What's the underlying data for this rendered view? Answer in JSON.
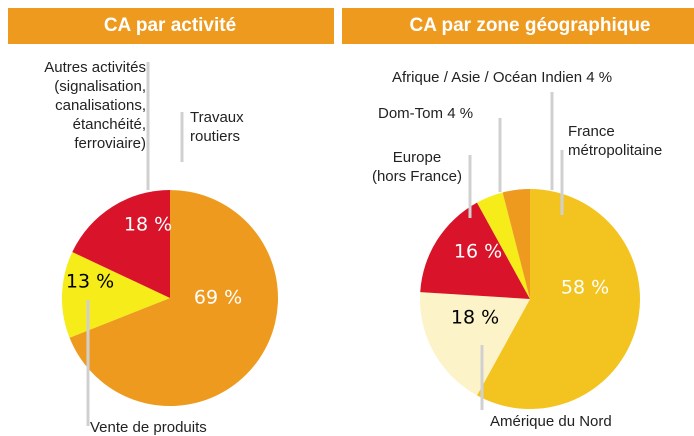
{
  "chart_data": [
    {
      "type": "pie",
      "title": "CA par activité",
      "categories": [
        "Travaux\nroutiers",
        "Vente de produits",
        "Autres activités\n(signalisation,\ncanalisations,\nétanchéité,\nferroviaire)"
      ],
      "values": [
        69,
        13,
        18
      ],
      "value_labels": [
        "69 %",
        "13 %",
        "18 %"
      ],
      "colors": [
        "#ee9a1f",
        "#f5ec1a",
        "#d9142a"
      ]
    },
    {
      "type": "pie",
      "title": "CA par zone géographique",
      "categories": [
        "France\nmétropolitaine",
        "Amérique du Nord",
        "Europe\n(hors France)",
        "Dom-Tom",
        "Afrique / Asie / Océan Indien"
      ],
      "values": [
        58,
        18,
        16,
        4,
        4
      ],
      "value_labels": [
        "58 %",
        "18 %",
        "16 %",
        "4 %",
        "4 %"
      ],
      "colors": [
        "#f3c320",
        "#fcf3c8",
        "#d9142a",
        "#f5ec1a",
        "#ee9a1f"
      ]
    }
  ]
}
